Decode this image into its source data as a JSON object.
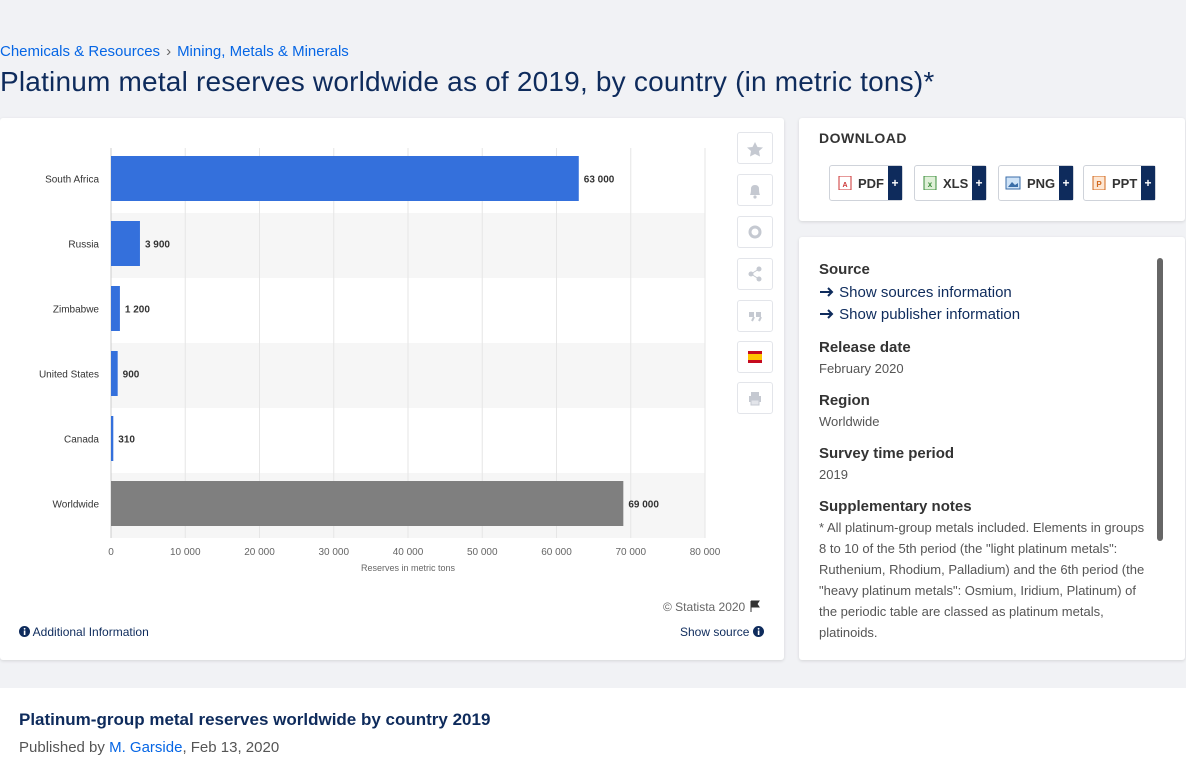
{
  "breadcrumb": [
    "Chemicals & Resources",
    "Mining, Metals & Minerals"
  ],
  "breadcrumb_separator": "›",
  "title": "Platinum metal reserves worldwide as of 2019, by country (in metric tons)*",
  "chart_data": {
    "type": "bar",
    "orientation": "horizontal",
    "categories": [
      "South Africa",
      "Russia",
      "Zimbabwe",
      "United States",
      "Canada",
      "Worldwide"
    ],
    "values": [
      63000,
      3900,
      1200,
      900,
      310,
      69000
    ],
    "value_labels": [
      "63 000",
      "3 900",
      "1 200",
      "900",
      "310",
      "69 000"
    ],
    "colors": [
      "#3470dc",
      "#3470dc",
      "#3470dc",
      "#3470dc",
      "#3470dc",
      "#7f7f7f"
    ],
    "xlabel": "Reserves in metric tons",
    "xlim": [
      0,
      80000
    ],
    "xticks": [
      0,
      {
        "value": 10000,
        "label": "10 000"
      },
      {
        "value": 20000,
        "label": "20 000"
      },
      {
        "value": 30000,
        "label": "30 000"
      },
      {
        "value": 40000,
        "label": "40 000"
      },
      {
        "value": 50000,
        "label": "50 000"
      },
      {
        "value": 60000,
        "label": "60 000"
      },
      {
        "value": 70000,
        "label": "70 000"
      },
      {
        "value": 80000,
        "label": "80 000"
      }
    ],
    "grid": true
  },
  "chart_footer": {
    "copyright": "© Statista 2020",
    "additional": "Additional Information",
    "show_source": "Show source"
  },
  "download": {
    "heading": "DOWNLOAD",
    "buttons": [
      {
        "label": "PDF",
        "extra": "+"
      },
      {
        "label": "XLS",
        "extra": "+"
      },
      {
        "label": "PNG",
        "extra": "+"
      },
      {
        "label": "PPT",
        "extra": "+"
      }
    ]
  },
  "details": {
    "source_heading": "Source",
    "source_links": [
      "Show sources information",
      "Show publisher information"
    ],
    "items": [
      {
        "heading": "Release date",
        "value": "February 2020"
      },
      {
        "heading": "Region",
        "value": "Worldwide"
      },
      {
        "heading": "Survey time period",
        "value": "2019"
      },
      {
        "heading": "Supplementary notes",
        "value": "* All platinum-group metals included. Elements in groups 8 to 10 of the 5th period (the \"light platinum metals\": Ruthenium, Rhodium, Palladium) and the 6th period (the \"heavy platinum metals\": Osmium, Iridium, Platinum) of the periodic table are classed as platinum metals, platinoids."
      }
    ]
  },
  "footer": {
    "title": "Platinum-group metal reserves worldwide by country 2019",
    "published_prefix": "Published by",
    "author": "M. Garside",
    "date": ", Feb 13, 2020"
  }
}
